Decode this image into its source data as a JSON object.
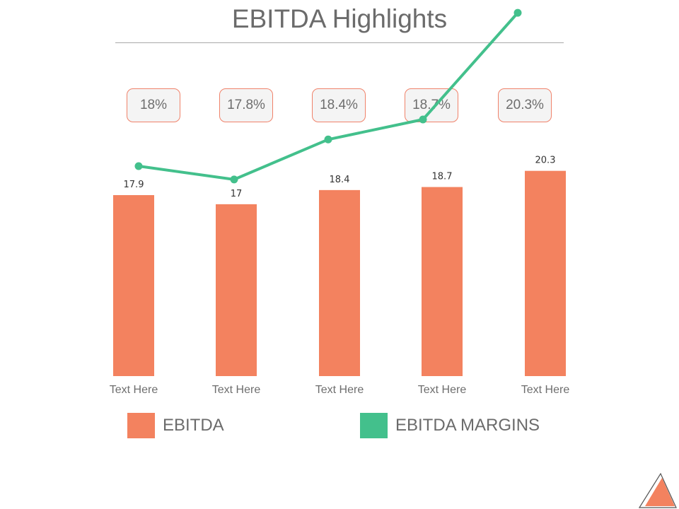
{
  "slide": {
    "title": "EBITDA Highlights"
  },
  "margin_boxes": [
    "18%",
    "17.8%",
    "18.4%",
    "18.7%",
    "20.3%"
  ],
  "colors": {
    "bar": "#f3825f",
    "line": "#43c08c",
    "title": "#6b6b6b"
  },
  "legend": {
    "ebitda_label": "EBITDA",
    "margins_label": "EBITDA MARGINS"
  },
  "chart_data": {
    "type": "bar",
    "title": "EBITDA Highlights",
    "categories": [
      "Text Here",
      "Text Here",
      "Text Here",
      "Text Here",
      "Text Here"
    ],
    "series": [
      {
        "name": "EBITDA",
        "type": "bar",
        "values": [
          17.9,
          17,
          18.4,
          18.7,
          20.3
        ],
        "data_labels": [
          "17.9",
          "17",
          "18.4",
          "18.7",
          "20.3"
        ]
      },
      {
        "name": "EBITDA MARGINS",
        "type": "line",
        "values": [
          18,
          17.8,
          18.4,
          18.7,
          20.3
        ]
      }
    ],
    "ylim": [
      0,
      22
    ],
    "grid": false,
    "legend_position": "bottom"
  }
}
